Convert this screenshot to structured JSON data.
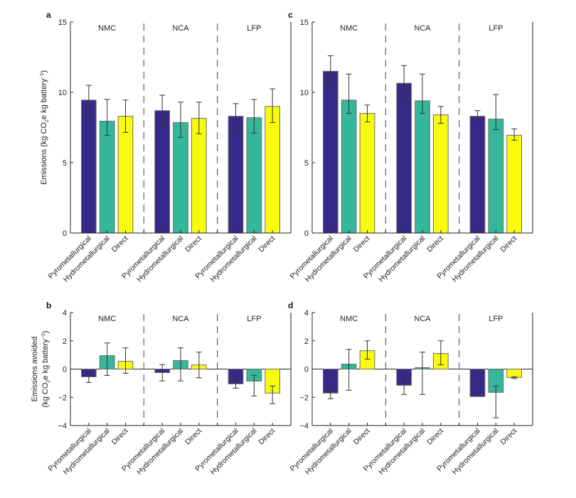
{
  "chart_data": [
    {
      "panel": "a",
      "type": "bar",
      "groups": [
        "NMC",
        "NCA",
        "LFP"
      ],
      "categories": [
        "Pyrometallurgical",
        "Hydrometallurgical",
        "Direct"
      ],
      "ylabel": "Emissions (kg CO2e kg battery-1)",
      "ylabel_parts": [
        "Emissions (kg CO",
        "2",
        "e kg battery",
        "−1",
        ")"
      ],
      "ylim": [
        0,
        15
      ],
      "yticks": [
        0,
        5,
        10,
        15
      ],
      "zero_line": false,
      "series": [
        {
          "name": "Pyrometallurgical",
          "values": [
            9.45,
            8.7,
            8.3
          ],
          "err_low": [
            8.35,
            7.5,
            7.3
          ],
          "err_high": [
            10.5,
            9.8,
            9.2
          ]
        },
        {
          "name": "Hydrometallurgical",
          "values": [
            7.95,
            7.85,
            8.2
          ],
          "err_low": [
            6.95,
            6.8,
            7.1
          ],
          "err_high": [
            9.5,
            9.3,
            9.5
          ]
        },
        {
          "name": "Direct",
          "values": [
            8.3,
            8.15,
            9.0
          ],
          "err_low": [
            7.15,
            7.05,
            7.85
          ],
          "err_high": [
            9.45,
            9.3,
            10.25
          ]
        }
      ]
    },
    {
      "panel": "c",
      "type": "bar",
      "groups": [
        "NMC",
        "NCA",
        "LFP"
      ],
      "categories": [
        "Pyrometallurgical",
        "Hydrometallurgical",
        "Direct"
      ],
      "ylabel": "",
      "ylim": [
        0,
        15
      ],
      "yticks": [
        0,
        5,
        10,
        15
      ],
      "zero_line": false,
      "series": [
        {
          "name": "Pyrometallurgical",
          "values": [
            11.5,
            10.65,
            8.3
          ],
          "err_low": [
            10.5,
            9.35,
            7.95
          ],
          "err_high": [
            12.6,
            11.9,
            8.7
          ]
        },
        {
          "name": "Hydrometallurgical",
          "values": [
            9.45,
            9.4,
            8.1
          ],
          "err_low": [
            8.5,
            8.5,
            7.35
          ],
          "err_high": [
            11.3,
            11.3,
            9.85
          ]
        },
        {
          "name": "Direct",
          "values": [
            8.5,
            8.4,
            6.95
          ],
          "err_low": [
            7.9,
            7.8,
            6.6
          ],
          "err_high": [
            9.1,
            9.0,
            7.4
          ]
        }
      ]
    },
    {
      "panel": "b",
      "type": "bar",
      "groups": [
        "NMC",
        "NCA",
        "LFP"
      ],
      "categories": [
        "Pyrometallurgical",
        "Hydrometallurgical",
        "Direct"
      ],
      "ylabel": "Emissions avoided (kg CO2e kg battery-1)",
      "ylabel_line1": "Emissions avoided",
      "ylabel_parts": [
        "(kg CO",
        "2",
        "e kg battery",
        "−1",
        ")"
      ],
      "ylim": [
        -4,
        4
      ],
      "yticks": [
        -4,
        -2,
        0,
        2,
        4
      ],
      "zero_line": true,
      "series": [
        {
          "name": "Pyrometallurgical",
          "values": [
            -0.55,
            -0.25,
            -1.05
          ],
          "err_low": [
            -0.95,
            -0.84,
            -1.35
          ],
          "err_high": [
            -0.15,
            0.32,
            -0.7
          ]
        },
        {
          "name": "Hydrometallurgical",
          "values": [
            0.95,
            0.6,
            -0.85
          ],
          "err_low": [
            -0.45,
            -0.84,
            -1.9
          ],
          "err_high": [
            1.85,
            1.5,
            -0.45
          ]
        },
        {
          "name": "Direct",
          "values": [
            0.55,
            0.29,
            -1.7
          ],
          "err_low": [
            -0.3,
            -0.62,
            -2.45
          ],
          "err_high": [
            1.5,
            1.2,
            -1.2
          ]
        }
      ]
    },
    {
      "panel": "d",
      "type": "bar",
      "groups": [
        "NMC",
        "NCA",
        "LFP"
      ],
      "categories": [
        "Pyrometallurgical",
        "Hydrometallurgical",
        "Direct"
      ],
      "ylabel": "",
      "ylim": [
        -4,
        4
      ],
      "yticks": [
        -4,
        -2,
        0,
        2,
        4
      ],
      "zero_line": true,
      "series": [
        {
          "name": "Pyrometallurgical",
          "values": [
            -1.7,
            -1.15,
            -1.95
          ],
          "err_low": [
            -2.1,
            -1.8,
            -1.95
          ],
          "err_high": [
            -1.35,
            -0.5,
            -1.95
          ]
        },
        {
          "name": "Hydrometallurgical",
          "values": [
            0.35,
            0.1,
            -1.65
          ],
          "err_low": [
            -1.5,
            -1.8,
            -3.45
          ],
          "err_high": [
            1.4,
            1.2,
            -1.2
          ]
        },
        {
          "name": "Direct",
          "values": [
            1.3,
            1.1,
            -0.6
          ],
          "err_low": [
            0.7,
            0.3,
            -0.68
          ],
          "err_high": [
            2.0,
            2.0,
            -0.55
          ]
        }
      ]
    }
  ],
  "colors": {
    "Pyrometallurgical": "#352a87",
    "Hydrometallurgical": "#35b79b",
    "Direct": "#f9fb0e",
    "bar_edge": "#6b6b6b",
    "error_bar": "#333333",
    "axis": "#222222",
    "separator": "#555555"
  }
}
